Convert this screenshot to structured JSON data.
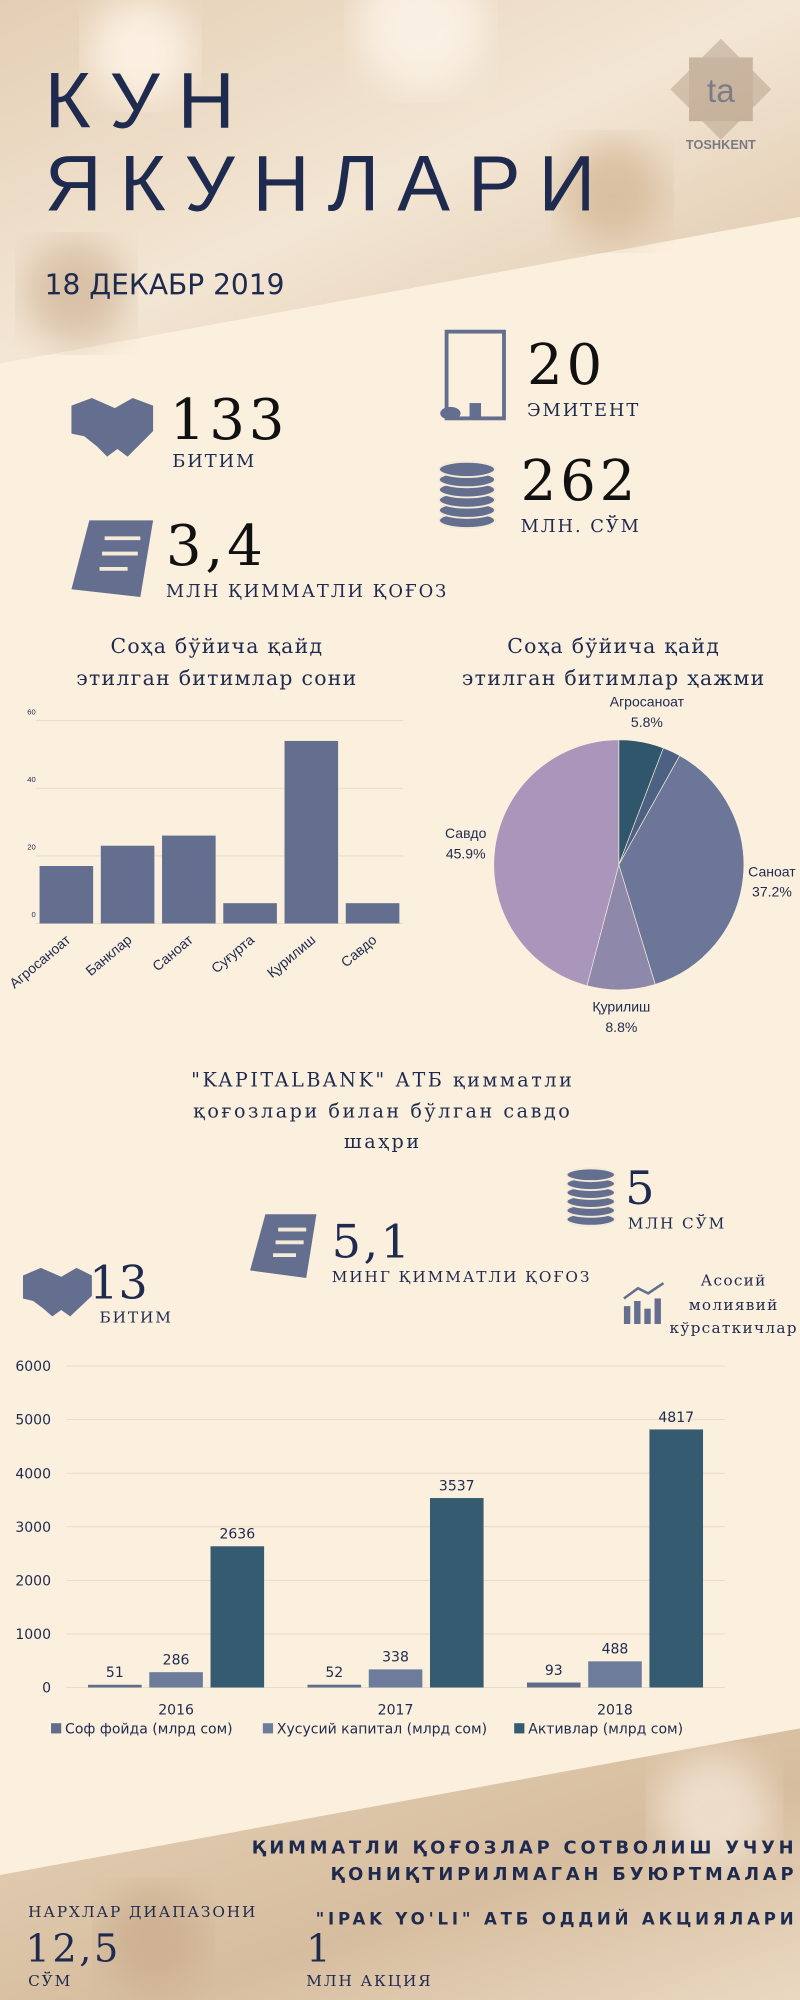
{
  "header": {
    "title_lines": [
      "КУН",
      "ЯКУНЛАРИ"
    ],
    "date": "18 ДЕКАБР 2019",
    "logo": "TOSHKENT"
  },
  "stats": {
    "deals": {
      "value": "133",
      "label": "БИТИМ"
    },
    "issuers": {
      "value": "20",
      "label": "ЭМИТЕНТ"
    },
    "volume": {
      "value": "262",
      "label": "МЛН. СЎМ"
    },
    "securities": {
      "value": "3,4",
      "label": "МЛН ҚИММАТЛИ ҚОҒОЗ"
    }
  },
  "chart_data": [
    {
      "type": "bar",
      "title": [
        "Соҳа бўйича қайд",
        "этилган битимлар сони"
      ],
      "categories": [
        "Агросаноат",
        "Банклар",
        "Саноат",
        "Суғурта",
        "Қурилиш",
        "Савдо"
      ],
      "values": [
        17,
        23,
        26,
        6,
        54,
        6
      ],
      "color": "#646e8e",
      "ylim": [
        0,
        60
      ],
      "yticks": [
        0,
        20,
        40,
        60
      ],
      "grid": true
    },
    {
      "type": "pie",
      "title": [
        "Соҳа бўйича қайд",
        "этилган битимлар ҳажми"
      ],
      "categories": [
        "Агросаноат",
        null,
        "Саноат",
        "Қурилиш",
        "Савдо"
      ],
      "values": [
        5.8,
        2.3,
        37.2,
        8.8,
        45.9
      ],
      "value_labels": [
        "5.8%",
        null,
        "37.2%",
        "8.8%",
        "45.9%"
      ],
      "colors": [
        "#30566b",
        "#4d6282",
        "#6c7699",
        "#8e88aa",
        "#a996ba"
      ]
    },
    {
      "type": "bar",
      "title": [
        "Асосий",
        "молиявий",
        "кўрсаткичлар"
      ],
      "categories": [
        "2016",
        "2017",
        "2018"
      ],
      "series": [
        {
          "name": "Соф фойда (млрд сом)",
          "color": "#5f6c8c",
          "values": [
            51,
            52,
            93
          ]
        },
        {
          "name": "Хусусий капитал (млрд сом)",
          "color": "#6e7c9c",
          "values": [
            286,
            338,
            488
          ]
        },
        {
          "name": "Активлар (млрд сом)",
          "color": "#355b71",
          "values": [
            2636,
            3537,
            4817
          ]
        }
      ],
      "ylim": [
        0,
        6000
      ],
      "yticks": [
        0,
        1000,
        2000,
        3000,
        4000,
        5000,
        6000
      ],
      "grid": true
    }
  ],
  "kapitalbank": {
    "title_lines": [
      "\"KAPITALBANK\" АТБ қимматли",
      "қоғозлари билан бўлган савдо",
      "шаҳри"
    ],
    "volume": {
      "value": "5",
      "label": "МЛН СЎМ"
    },
    "securities": {
      "value": "5,1",
      "label": "МИНГ ҚИММАТЛИ ҚОҒОЗ"
    },
    "deals": {
      "value": "13",
      "label": "БИТИМ"
    }
  },
  "footer": {
    "title_lines": [
      "ҚИММАТЛИ ҚОҒОЗЛАР СОТВОЛИШ УЧУН",
      "ҚОНИҚТИРИЛМАГАН БУЮРТМАЛАР"
    ],
    "subtitle": "\"IPAK YO'LI\" АТБ ОДДИЙ АКЦИЯЛАРИ",
    "range_label": "НАРХЛАР ДИАПАЗОНИ",
    "price": {
      "value": "12,5",
      "unit": "СЎМ"
    },
    "quantity": {
      "value": "1",
      "unit": "МЛН АКЦИЯ"
    }
  }
}
